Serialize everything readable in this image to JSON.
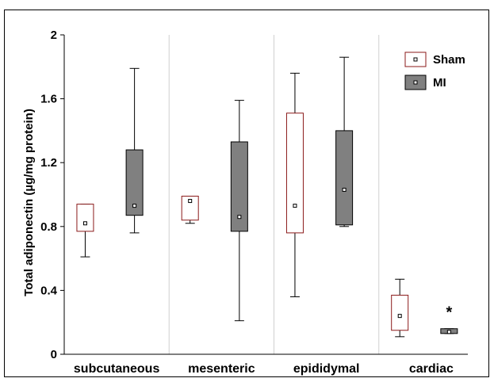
{
  "chart_data": {
    "type": "box",
    "title": "",
    "xlabel": "",
    "ylabel": "Total adiponectin (µg/mg protein)",
    "ylim": [
      0,
      2
    ],
    "yticks": [
      0,
      0.4,
      0.8,
      1.2,
      1.6,
      2
    ],
    "ytick_labels": [
      "0",
      "0.4",
      "0.8",
      "1.2",
      "1.6",
      "2"
    ],
    "categories": [
      "subcutaneous",
      "mesenteric",
      "epididymal",
      "cardiac"
    ],
    "legend_position": "top-right",
    "series": [
      {
        "name": "Sham",
        "fill": "#ffffff",
        "stroke": "#8b1a1a",
        "boxes": [
          {
            "min": 0.61,
            "q1": 0.77,
            "median": 0.82,
            "q3": 0.94,
            "max": 0.94
          },
          {
            "min": 0.82,
            "q1": 0.84,
            "median": 0.96,
            "q3": 0.99,
            "max": 0.99
          },
          {
            "min": 0.36,
            "q1": 0.76,
            "median": 0.93,
            "q3": 1.51,
            "max": 1.76
          },
          {
            "min": 0.11,
            "q1": 0.15,
            "median": 0.24,
            "q3": 0.37,
            "max": 0.47
          }
        ]
      },
      {
        "name": "MI",
        "fill": "#808080",
        "stroke": "#000000",
        "boxes": [
          {
            "min": 0.76,
            "q1": 0.87,
            "median": 0.93,
            "q3": 1.28,
            "max": 1.79
          },
          {
            "min": 0.21,
            "q1": 0.77,
            "median": 0.86,
            "q3": 1.33,
            "max": 1.59
          },
          {
            "min": 0.8,
            "q1": 0.81,
            "median": 1.03,
            "q3": 1.4,
            "max": 1.86
          },
          {
            "min": 0.13,
            "q1": 0.13,
            "median": 0.14,
            "q3": 0.16,
            "max": 0.16
          }
        ]
      }
    ],
    "annotations": [
      {
        "text": "*",
        "category": "cardiac",
        "series": "MI",
        "y": 0.27
      }
    ]
  }
}
